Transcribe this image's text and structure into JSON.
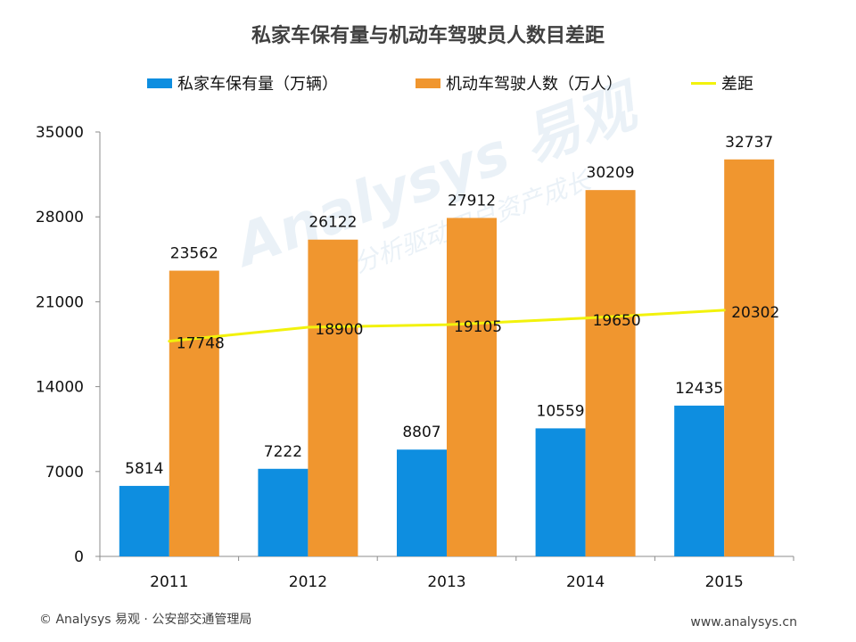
{
  "chart_data": {
    "type": "bar",
    "title": "私家车保有量与机动车驾驶员人数目差距",
    "categories": [
      "2011",
      "2012",
      "2013",
      "2014",
      "2015"
    ],
    "series": [
      {
        "name": "私家车保有量（万辆）",
        "type": "bar",
        "color": "#0e8ee0",
        "values": [
          5814,
          7222,
          8807,
          10559,
          12435
        ]
      },
      {
        "name": "机动车驾驶人数（万人）",
        "type": "bar",
        "color": "#f0962f",
        "values": [
          23562,
          26122,
          27912,
          30209,
          32737
        ]
      },
      {
        "name": "差距",
        "type": "line",
        "color": "#f2f20c",
        "values": [
          17748,
          18900,
          19105,
          19650,
          20302
        ]
      }
    ],
    "ylim": [
      0,
      35000
    ],
    "yticks": [
      0,
      7000,
      14000,
      21000,
      28000,
      35000
    ],
    "xlabel": "",
    "ylabel": "",
    "legend_position": "top"
  },
  "watermark": {
    "main": "Analysys 易观",
    "sub": "实时分析驱动用户资产成长"
  },
  "footer": {
    "source": "© Analysys 易观 · 公安部交通管理局",
    "url": "www.analysys.cn"
  }
}
